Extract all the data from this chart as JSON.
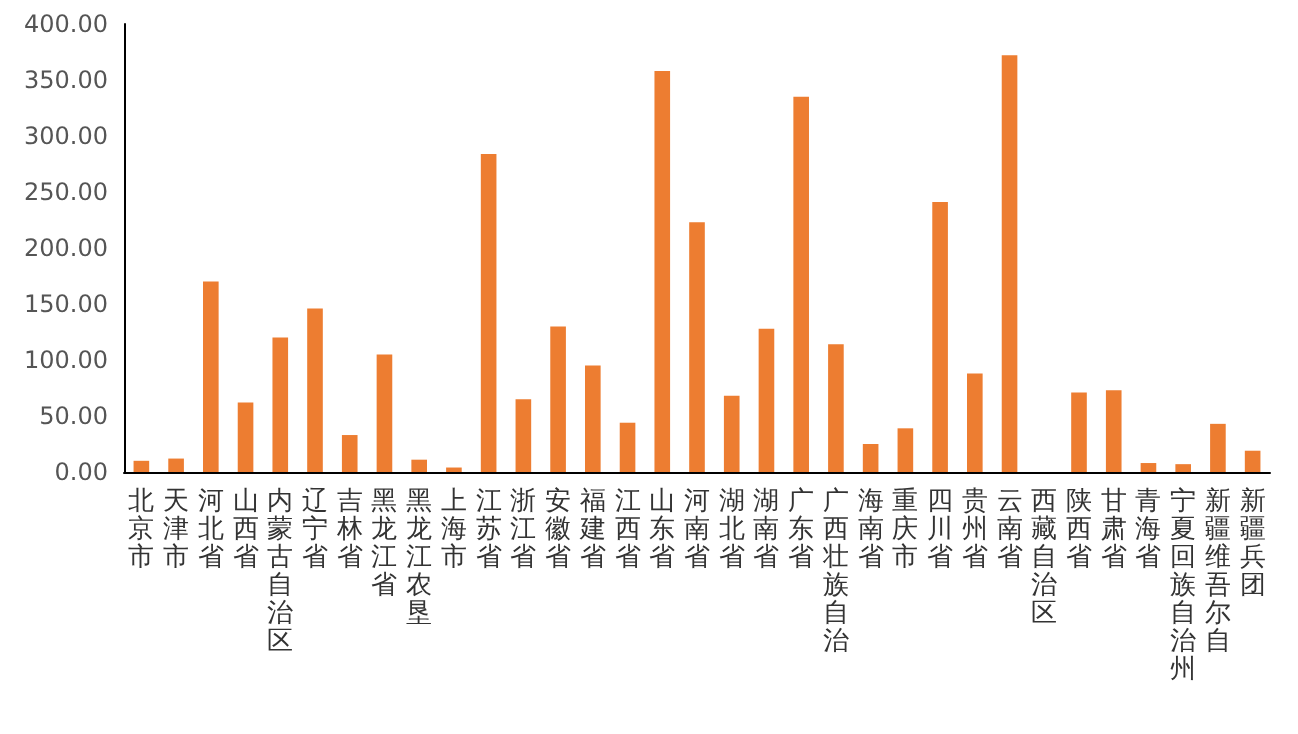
{
  "chart_data": {
    "type": "bar",
    "categories": [
      "北京市",
      "天津市",
      "河北省",
      "山西省",
      "内蒙古自治区",
      "辽宁省",
      "吉林省",
      "黑龙江省",
      "黑龙江农垦",
      "上海市",
      "江苏省",
      "浙江省",
      "安徽省",
      "福建省",
      "江西省",
      "山东省",
      "河南省",
      "湖北省",
      "湖南省",
      "广东省",
      "广西壮族自治",
      "海南省",
      "重庆市",
      "四川省",
      "贵州省",
      "云南省",
      "西藏自治区",
      "陕西省",
      "甘肃省",
      "青海省",
      "宁夏回族自治州",
      "新疆维吾尔自",
      "新疆兵团"
    ],
    "values": [
      10,
      12,
      170,
      62,
      120,
      146,
      33,
      105,
      11,
      4,
      284,
      65,
      130,
      95,
      44,
      358,
      223,
      68,
      128,
      335,
      114,
      25,
      39,
      241,
      88,
      372,
      0,
      71,
      73,
      8,
      7,
      43,
      19
    ],
    "color": "#ed7d31",
    "ylim": [
      0,
      400
    ],
    "yticks": [
      {
        "value": 0,
        "label": "0.00"
      },
      {
        "value": 50,
        "label": "50.00"
      },
      {
        "value": 100,
        "label": "100.00"
      },
      {
        "value": 150,
        "label": "150.00"
      },
      {
        "value": 200,
        "label": "200.00"
      },
      {
        "value": 250,
        "label": "250.00"
      },
      {
        "value": 300,
        "label": "300.00"
      },
      {
        "value": 350,
        "label": "350.00"
      },
      {
        "value": 400,
        "label": "400.00"
      }
    ],
    "grid": false
  }
}
